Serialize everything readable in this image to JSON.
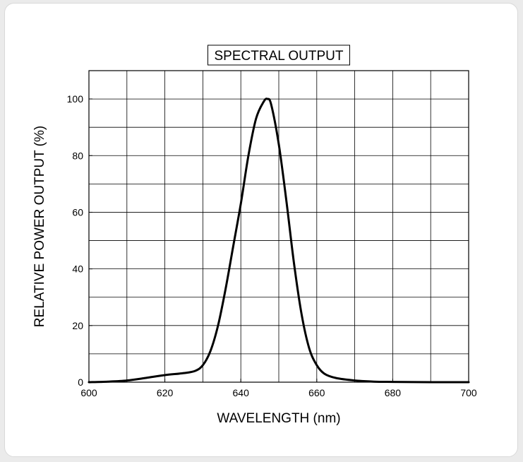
{
  "chart_data": {
    "type": "line",
    "title": "SPECTRAL OUTPUT",
    "xlabel": "WAVELENGTH (nm)",
    "ylabel": "RELATIVE POWER OUTPUT (%)",
    "xlim": [
      600,
      700
    ],
    "ylim": [
      0,
      110
    ],
    "x_ticks": [
      600,
      620,
      640,
      660,
      680,
      700
    ],
    "y_ticks": [
      0,
      20,
      40,
      60,
      80,
      100
    ],
    "x_grid_step": 10,
    "y_grid_step": 10,
    "grid": true,
    "series": [
      {
        "color": "#000000",
        "x": [
          600,
          605,
          610,
          615,
          620,
          625,
          628,
          630,
          632,
          634,
          636,
          638,
          640,
          642,
          644,
          646,
          647,
          648,
          650,
          652,
          654,
          656,
          658,
          660,
          662,
          665,
          670,
          675,
          680,
          690,
          700
        ],
        "y": [
          0.0,
          0.2,
          0.6,
          1.5,
          2.5,
          3.2,
          4.0,
          6.0,
          11.0,
          20.0,
          33.0,
          48.0,
          63.0,
          80.0,
          93.0,
          99.0,
          100.0,
          98.0,
          84.0,
          64.0,
          42.0,
          24.0,
          12.0,
          6.0,
          3.0,
          1.5,
          0.6,
          0.2,
          0.1,
          0.0,
          0.0
        ]
      }
    ]
  }
}
